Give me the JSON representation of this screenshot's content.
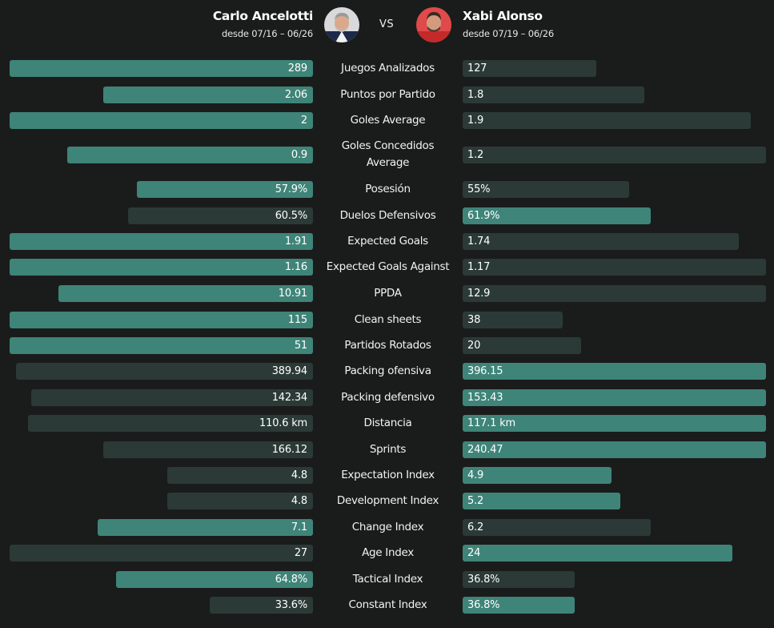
{
  "colors": {
    "win": "#3f8478",
    "lose": "#2b3a37",
    "background": "#1a1c1b"
  },
  "header": {
    "left": {
      "name": "Carlo Ancelotti",
      "since": "desde 07/16 – 06/26",
      "avatar": "carlo-ancelotti-avatar"
    },
    "vs": "VS",
    "right": {
      "name": "Xabi Alonso",
      "since": "desde 07/19 – 06/26",
      "avatar": "xabi-alonso-avatar"
    }
  },
  "chart_data": {
    "type": "bar",
    "subtype": "diverging-comparison",
    "categories": [
      "Juegos Analizados",
      "Puntos por Partido",
      "Goles Average",
      "Goles Concedidos Average",
      "Posesión",
      "Duelos Defensivos",
      "Expected Goals",
      "Expected Goals Against",
      "PPDA",
      "Clean sheets",
      "Partidos Rotados",
      "Packing ofensiva",
      "Packing defensivo",
      "Distancia",
      "Sprints",
      "Expectation Index",
      "Development Index",
      "Change Index",
      "Age Index",
      "Tactical Index",
      "Constant Index"
    ],
    "series": [
      {
        "name": "Carlo Ancelotti",
        "labels": [
          "289",
          "2.06",
          "2",
          "0.9",
          "57.9%",
          "60.5%",
          "1.91",
          "1.16",
          "10.91",
          "115",
          "51",
          "389.94",
          "142.34",
          "110.6 km",
          "166.12",
          "4.8",
          "4.8",
          "7.1",
          "27",
          "64.8%",
          "33.6%"
        ],
        "values": [
          289,
          2.06,
          2,
          0.9,
          57.9,
          60.5,
          1.91,
          1.16,
          10.91,
          115,
          51,
          389.94,
          142.34,
          110.6,
          166.12,
          4.8,
          4.8,
          7.1,
          27,
          64.8,
          33.6
        ],
        "bar_fraction": [
          1.0,
          0.69,
          1.0,
          0.81,
          0.58,
          0.61,
          1.0,
          1.0,
          0.84,
          1.0,
          1.0,
          0.98,
          0.93,
          0.94,
          0.69,
          0.48,
          0.48,
          0.71,
          1.0,
          0.65,
          0.34
        ],
        "highlighted": [
          true,
          true,
          true,
          true,
          true,
          false,
          true,
          true,
          true,
          true,
          true,
          false,
          false,
          false,
          false,
          false,
          false,
          true,
          false,
          true,
          false
        ]
      },
      {
        "name": "Xabi Alonso",
        "labels": [
          "127",
          "1.8",
          "1.9",
          "1.2",
          "55%",
          "61.9%",
          "1.74",
          "1.17",
          "12.9",
          "38",
          "20",
          "396.15",
          "153.43",
          "117.1 km",
          "240.47",
          "4.9",
          "5.2",
          "6.2",
          "24",
          "36.8%",
          "36.8%"
        ],
        "values": [
          127,
          1.8,
          1.9,
          1.2,
          55,
          61.9,
          1.74,
          1.17,
          12.9,
          38,
          20,
          396.15,
          153.43,
          117.1,
          240.47,
          4.9,
          5.2,
          6.2,
          24,
          36.8,
          36.8
        ],
        "bar_fraction": [
          0.44,
          0.6,
          0.95,
          1.0,
          0.55,
          0.62,
          0.91,
          1.0,
          1.0,
          0.33,
          0.39,
          1.0,
          1.0,
          1.0,
          1.0,
          0.49,
          0.52,
          0.62,
          0.89,
          0.37,
          0.37
        ],
        "highlighted": [
          false,
          false,
          false,
          false,
          false,
          true,
          false,
          false,
          false,
          false,
          false,
          true,
          true,
          true,
          true,
          true,
          true,
          false,
          true,
          false,
          true
        ]
      }
    ]
  }
}
